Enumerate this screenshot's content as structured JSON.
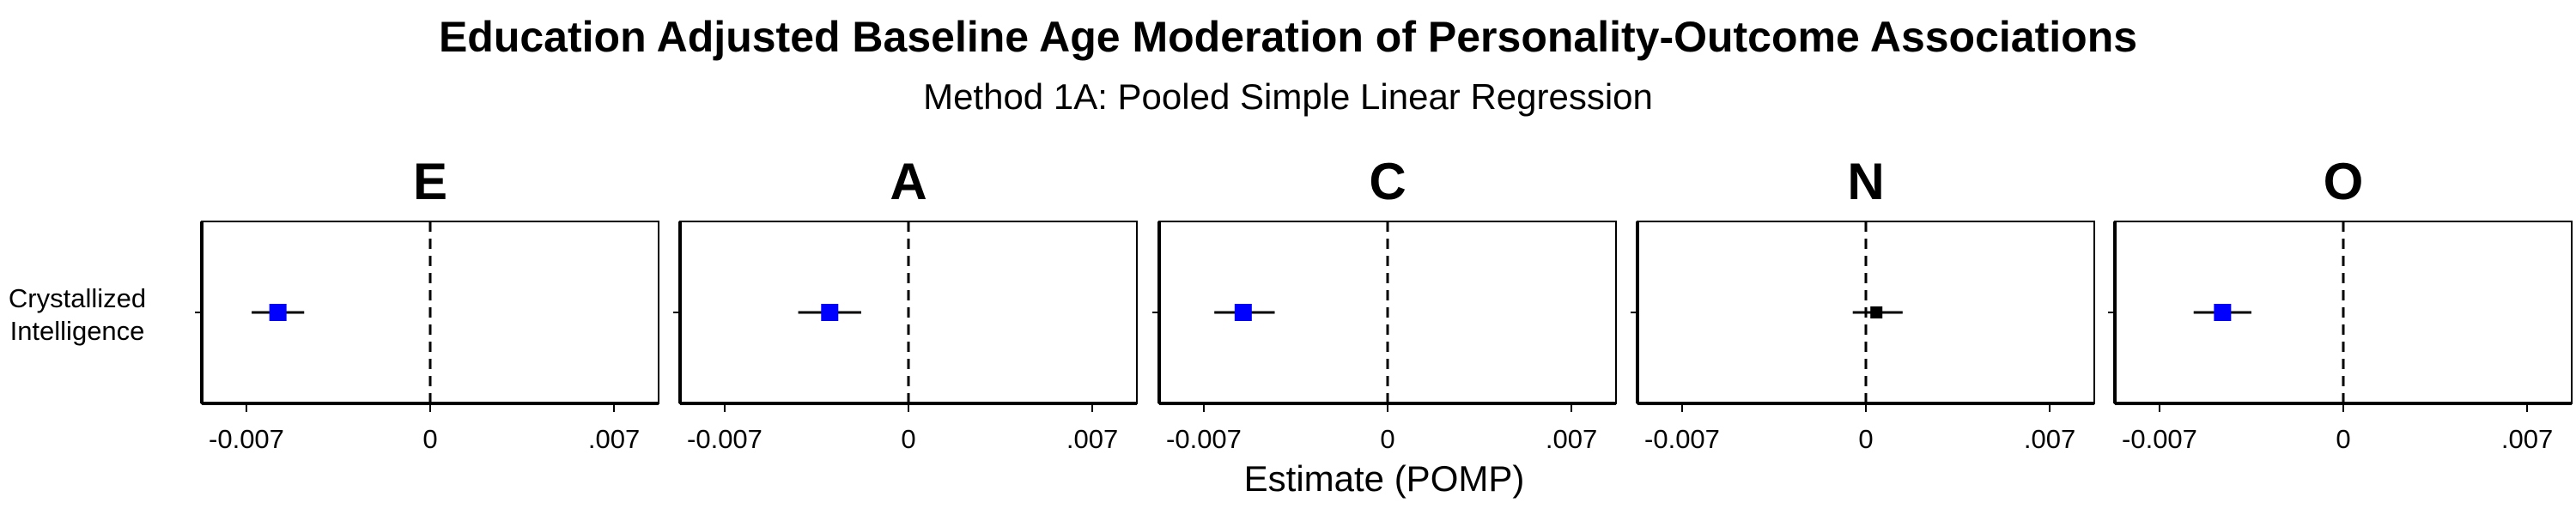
{
  "chart_data": {
    "type": "scatter",
    "subtype": "forest-plot",
    "title": "Education Adjusted Baseline Age Moderation of Personality-Outcome Associations",
    "subtitle": "Method 1A: Pooled Simple Linear Regression",
    "xlabel": "Estimate (POMP)",
    "ylabel": "",
    "xlim": [
      -0.0087,
      0.0087
    ],
    "x_ticks": [
      -0.007,
      0,
      0.007
    ],
    "x_tick_labels": [
      "-0.007",
      "0",
      ".007"
    ],
    "reference_line": 0,
    "categories": [
      "Crystallized Intelligence"
    ],
    "category_lines": [
      "Crystallized",
      "Intelligence"
    ],
    "significant_color": "#0000FF",
    "nonsignificant_color": "#000000",
    "panels": [
      {
        "label": "E",
        "estimate": -0.0058,
        "ci": [
          -0.0068,
          -0.0048
        ],
        "significant": true
      },
      {
        "label": "A",
        "estimate": -0.003,
        "ci": [
          -0.0042,
          -0.0018
        ],
        "significant": true
      },
      {
        "label": "C",
        "estimate": -0.0055,
        "ci": [
          -0.0066,
          -0.0043
        ],
        "significant": true
      },
      {
        "label": "N",
        "estimate": 0.0004,
        "ci": [
          -0.0005,
          0.0014
        ],
        "significant": false
      },
      {
        "label": "O",
        "estimate": -0.0046,
        "ci": [
          -0.0057,
          -0.0035
        ],
        "significant": true
      }
    ]
  }
}
